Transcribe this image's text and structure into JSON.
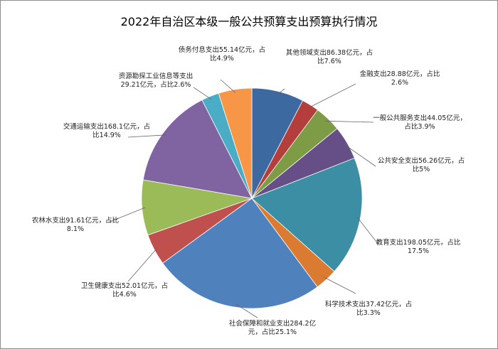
{
  "chart_data": {
    "type": "pie",
    "title": "2022年自治区本级一般公共预算支出预算执行情况",
    "slices": [
      {
        "label_lines": [
          "其他领域支出86.38亿元，占",
          "比7.6%"
        ],
        "value": 86.38,
        "percent": 7.6,
        "color": "#3c6aa0"
      },
      {
        "label_lines": [
          "金融支出28.88亿元，占比",
          "2.6%"
        ],
        "value": 28.88,
        "percent": 2.6,
        "color": "#b33e3b"
      },
      {
        "label_lines": [
          "一般公共服务支出44.05亿元，",
          "占比3.9%"
        ],
        "value": 44.05,
        "percent": 3.9,
        "color": "#7d9c45"
      },
      {
        "label_lines": [
          "公共安全支出56.26亿元，占",
          "比5%"
        ],
        "value": 56.26,
        "percent": 5.0,
        "color": "#654f86"
      },
      {
        "label_lines": [
          "教育支出198.05亿元，占比",
          "17.5%"
        ],
        "value": 198.05,
        "percent": 17.5,
        "color": "#3b8ea3"
      },
      {
        "label_lines": [
          "科学技术支出37.42亿元，占",
          "比3.3%"
        ],
        "value": 37.42,
        "percent": 3.3,
        "color": "#db7b32"
      },
      {
        "label_lines": [
          "社会保障和就业支出284.2亿",
          "元，占比25.1%"
        ],
        "value": 284.2,
        "percent": 25.1,
        "color": "#4f81bd"
      },
      {
        "label_lines": [
          "卫生健康支出52.01亿元，占",
          "比4.6%"
        ],
        "value": 52.01,
        "percent": 4.6,
        "color": "#c0504d"
      },
      {
        "label_lines": [
          "农林水支出91.61亿元，占比",
          "8.1%"
        ],
        "value": 91.61,
        "percent": 8.1,
        "color": "#9bbb59"
      },
      {
        "label_lines": [
          "交通运输支出168.1亿元，占",
          "比14.9%"
        ],
        "value": 168.1,
        "percent": 14.9,
        "color": "#8064a2"
      },
      {
        "label_lines": [
          "资源勘探工业信息等支出",
          "29.21亿元，占比2.6%"
        ],
        "value": 29.21,
        "percent": 2.6,
        "color": "#4bacc6"
      },
      {
        "label_lines": [
          "债务付息支出55.14亿元，占",
          "比4.9%"
        ],
        "value": 55.14,
        "percent": 4.9,
        "color": "#f79646"
      }
    ],
    "legend": "none",
    "data_labels": "outside with leader lines"
  }
}
